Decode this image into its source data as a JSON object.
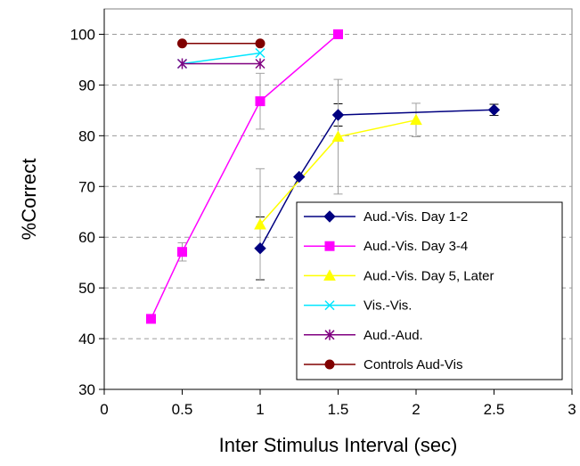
{
  "chart_data": {
    "type": "line",
    "title": "",
    "xlabel": "Inter Stimulus Interval (sec)",
    "ylabel": "%Correct",
    "xlim": [
      0,
      3
    ],
    "ylim": [
      30,
      105
    ],
    "xticks": [
      0,
      0.5,
      1,
      1.5,
      2,
      2.5,
      3
    ],
    "yticks": [
      30,
      40,
      50,
      60,
      70,
      80,
      90,
      100
    ],
    "grid": "horizontal dashed",
    "legend_position": "bottom-right",
    "series": [
      {
        "name": "Aud.-Vis. Day 1-2",
        "color": "#000080",
        "marker": "diamond",
        "x": [
          1,
          1.25,
          1.5,
          2.5
        ],
        "y": [
          57.8,
          71.9,
          84.1,
          85.1
        ],
        "error": [
          6.2,
          0,
          2.2,
          1.1
        ]
      },
      {
        "name": "Aud.-Vis. Day 3-4",
        "color": "#ff00ff",
        "marker": "square",
        "x": [
          0.3,
          0.5,
          1,
          1.5
        ],
        "y": [
          43.9,
          57.1,
          86.8,
          100
        ],
        "error": [
          0,
          1.8,
          5.5,
          0
        ]
      },
      {
        "name": "Aud.-Vis. Day 5, Later",
        "color": "#ffff00",
        "marker": "triangle",
        "x": [
          1,
          1.5,
          2
        ],
        "y": [
          62.5,
          79.8,
          83.1
        ],
        "error": [
          11,
          11.3,
          3.3
        ]
      },
      {
        "name": "Vis.-Vis.",
        "color": "#00e6ff",
        "marker": "x",
        "x": [
          0.5,
          1
        ],
        "y": [
          94.2,
          96.3
        ],
        "error": [
          0,
          0
        ]
      },
      {
        "name": "Aud.-Aud.",
        "color": "#800080",
        "marker": "star",
        "x": [
          0.5,
          1
        ],
        "y": [
          94.2,
          94.2
        ],
        "error": [
          0,
          0
        ]
      },
      {
        "name": "Controls Aud-Vis",
        "color": "#800000",
        "marker": "circle",
        "x": [
          0.5,
          1
        ],
        "y": [
          98.2,
          98.2
        ],
        "error": [
          0,
          0
        ]
      }
    ]
  }
}
